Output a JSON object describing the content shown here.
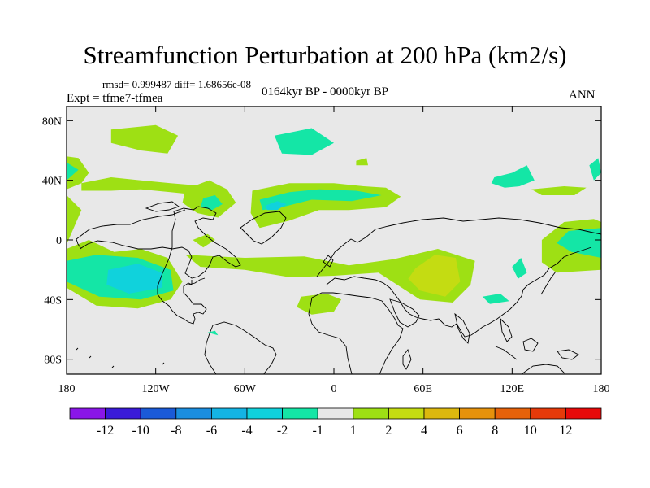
{
  "header": {
    "title": "Streamfunction Perturbation at 200 hPa (km2/s)",
    "stats": "rmsd= 0.999487 diff= 1.68656e-08",
    "experiment": "Expt = tfme7-tfmea",
    "period": "0164kyr BP - 0000kyr BP",
    "season": "ANN"
  },
  "map": {
    "projection": "cylindrical equidistant",
    "lon_range": [
      -180,
      180
    ],
    "lat_range": [
      -90,
      90
    ],
    "lat_ticks": [
      "80N",
      "40N",
      "0",
      "40S",
      "80S"
    ],
    "lon_ticks": [
      "180",
      "120W",
      "60W",
      "0",
      "60E",
      "120E",
      "180"
    ],
    "ocean_color": "#e8e8e8"
  },
  "colorbar": {
    "colors": [
      "#8a16e8",
      "#3a1ad8",
      "#1a5ad8",
      "#1a8ee0",
      "#14b4e4",
      "#10d2dc",
      "#14e6a6",
      "#e8e8e8",
      "#9ee014",
      "#c4dc12",
      "#dcb80e",
      "#e6920c",
      "#e6620a",
      "#e63a0a",
      "#e80a0a"
    ],
    "labels": [
      "-12",
      "-10",
      "-8",
      "-6",
      "-4",
      "-2",
      "-1",
      "1",
      "2",
      "4",
      "6",
      "8",
      "10",
      "12"
    ]
  },
  "chart_data": {
    "type": "heatmap",
    "title": "Streamfunction Perturbation at 200 hPa (km2/s)",
    "levels": [
      -12,
      -10,
      -8,
      -6,
      -4,
      -2,
      -1,
      1,
      2,
      4,
      6,
      8,
      10,
      12
    ],
    "regions": [
      {
        "name": "",
        "level": 2,
        "color": "#9ee014",
        "points": [
          [
            -180,
            -3
          ],
          [
            -170,
            20
          ],
          [
            -180,
            30
          ]
        ]
      },
      {
        "name": "",
        "level": 2,
        "color": "#9ee014",
        "points": [
          [
            -180,
            34
          ],
          [
            -170,
            38
          ],
          [
            -165,
            45
          ],
          [
            -172,
            55
          ],
          [
            -180,
            56
          ]
        ]
      },
      {
        "name": "",
        "level": -1,
        "color": "#14e6a6",
        "points": [
          [
            -180,
            40
          ],
          [
            -172,
            47
          ],
          [
            -180,
            52
          ]
        ]
      },
      {
        "name": "",
        "level": 2,
        "color": "#9ee014",
        "points": [
          [
            -180,
            -6
          ],
          [
            -165,
            0
          ],
          [
            -148,
            -8
          ],
          [
            -130,
            -6
          ],
          [
            -112,
            -12
          ],
          [
            -102,
            -28
          ],
          [
            -110,
            -40
          ],
          [
            -132,
            -46
          ],
          [
            -160,
            -44
          ],
          [
            -180,
            -32
          ]
        ]
      },
      {
        "name": "",
        "level": -1,
        "color": "#14e6a6",
        "points": [
          [
            -180,
            -14
          ],
          [
            -160,
            -10
          ],
          [
            -132,
            -12
          ],
          [
            -110,
            -20
          ],
          [
            -108,
            -34
          ],
          [
            -130,
            -40
          ],
          [
            -158,
            -38
          ],
          [
            -180,
            -28
          ]
        ]
      },
      {
        "name": "",
        "level": -2,
        "color": "#10d2dc",
        "points": [
          [
            -152,
            -20
          ],
          [
            -132,
            -16
          ],
          [
            -116,
            -22
          ],
          [
            -116,
            -32
          ],
          [
            -138,
            -36
          ],
          [
            -153,
            -30
          ]
        ]
      },
      {
        "name": "",
        "level": 2,
        "color": "#9ee014",
        "points": [
          [
            -170,
            38
          ],
          [
            -150,
            42
          ],
          [
            -130,
            40
          ],
          [
            -110,
            38
          ],
          [
            -85,
            36
          ],
          [
            -90,
            30
          ],
          [
            -110,
            32
          ],
          [
            -130,
            34
          ],
          [
            -150,
            33
          ],
          [
            -170,
            33
          ]
        ]
      },
      {
        "name": "",
        "level": 2,
        "color": "#9ee014",
        "points": [
          [
            -150,
            74
          ],
          [
            -120,
            77
          ],
          [
            -105,
            70
          ],
          [
            -112,
            58
          ],
          [
            -130,
            60
          ],
          [
            -150,
            65
          ]
        ]
      },
      {
        "name": "",
        "level": 2,
        "color": "#9ee014",
        "points": [
          [
            -100,
            34
          ],
          [
            -84,
            40
          ],
          [
            -72,
            34
          ],
          [
            -66,
            25
          ],
          [
            -78,
            15
          ],
          [
            -92,
            18
          ],
          [
            -102,
            25
          ]
        ]
      },
      {
        "name": "",
        "level": -1,
        "color": "#14e6a6",
        "points": [
          [
            -88,
            28
          ],
          [
            -80,
            30
          ],
          [
            -75,
            24
          ],
          [
            -82,
            20
          ],
          [
            -90,
            22
          ]
        ]
      },
      {
        "name": "",
        "level": 2,
        "color": "#9ee014",
        "points": [
          [
            -95,
            0
          ],
          [
            -85,
            4
          ],
          [
            -80,
            0
          ],
          [
            -88,
            -5
          ]
        ]
      },
      {
        "name": "",
        "level": 2,
        "color": "#9ee014",
        "points": [
          [
            -55,
            33
          ],
          [
            -30,
            38
          ],
          [
            0,
            38
          ],
          [
            20,
            36
          ],
          [
            35,
            35
          ],
          [
            45,
            29
          ],
          [
            35,
            22
          ],
          [
            10,
            20
          ],
          [
            -10,
            20
          ],
          [
            -30,
            13
          ],
          [
            -50,
            8
          ],
          [
            -56,
            18
          ]
        ]
      },
      {
        "name": "",
        "level": -1,
        "color": "#14e6a6",
        "points": [
          [
            -50,
            27
          ],
          [
            -30,
            32
          ],
          [
            -10,
            34
          ],
          [
            15,
            33
          ],
          [
            32,
            30
          ],
          [
            12,
            26
          ],
          [
            -15,
            27
          ],
          [
            -35,
            22
          ],
          [
            -48,
            20
          ]
        ]
      },
      {
        "name": "",
        "level": -2,
        "color": "#10d2dc",
        "points": [
          [
            -46,
            23
          ],
          [
            -38,
            26
          ],
          [
            -32,
            24
          ],
          [
            -38,
            20
          ],
          [
            -45,
            20
          ]
        ]
      },
      {
        "name": "",
        "level": -1,
        "color": "#14e6a6",
        "points": [
          [
            -40,
            70
          ],
          [
            -15,
            75
          ],
          [
            0,
            65
          ],
          [
            -15,
            57
          ],
          [
            -35,
            58
          ]
        ]
      },
      {
        "name": "",
        "level": 2,
        "color": "#9ee014",
        "points": [
          [
            15,
            53
          ],
          [
            22,
            55
          ],
          [
            23,
            50
          ],
          [
            15,
            50
          ]
        ]
      },
      {
        "name": "",
        "level": -1,
        "color": "#14e6a6",
        "points": [
          [
            108,
            42
          ],
          [
            120,
            45
          ],
          [
            130,
            50
          ],
          [
            135,
            40
          ],
          [
            125,
            36
          ],
          [
            115,
            35
          ],
          [
            106,
            38
          ]
        ]
      },
      {
        "name": "",
        "level": 2,
        "color": "#9ee014",
        "points": [
          [
            133,
            34
          ],
          [
            155,
            36
          ],
          [
            170,
            35
          ],
          [
            162,
            30
          ],
          [
            140,
            30
          ]
        ]
      },
      {
        "name": "",
        "level": -1,
        "color": "#14e6a6",
        "points": [
          [
            172,
            50
          ],
          [
            178,
            55
          ],
          [
            180,
            45
          ],
          [
            175,
            40
          ]
        ]
      },
      {
        "name": "",
        "level": 2,
        "color": "#9ee014",
        "points": [
          [
            180,
            -20
          ],
          [
            150,
            -22
          ],
          [
            140,
            -15
          ],
          [
            140,
            0
          ],
          [
            155,
            12
          ],
          [
            175,
            14
          ],
          [
            180,
            12
          ]
        ]
      },
      {
        "name": "",
        "level": -1,
        "color": "#14e6a6",
        "points": [
          [
            180,
            -12
          ],
          [
            160,
            -8
          ],
          [
            150,
            -2
          ],
          [
            158,
            6
          ],
          [
            180,
            8
          ]
        ]
      },
      {
        "name": "",
        "level": -1,
        "color": "#14e6a6",
        "points": [
          [
            120,
            -18
          ],
          [
            126,
            -12
          ],
          [
            130,
            -22
          ],
          [
            124,
            -26
          ]
        ]
      },
      {
        "name": "",
        "level": 2,
        "color": "#9ee014",
        "points": [
          [
            -100,
            -10
          ],
          [
            -60,
            -12
          ],
          [
            -20,
            -11
          ],
          [
            10,
            -17
          ],
          [
            40,
            -13
          ],
          [
            70,
            -6
          ],
          [
            95,
            -14
          ],
          [
            92,
            -30
          ],
          [
            80,
            -42
          ],
          [
            58,
            -40
          ],
          [
            30,
            -22
          ],
          [
            0,
            -24
          ],
          [
            -30,
            -25
          ],
          [
            -60,
            -20
          ],
          [
            -90,
            -18
          ]
        ]
      },
      {
        "name": "",
        "level": 4,
        "color": "#c4dc12",
        "points": [
          [
            55,
            -19
          ],
          [
            68,
            -10
          ],
          [
            82,
            -12
          ],
          [
            85,
            -28
          ],
          [
            75,
            -38
          ],
          [
            58,
            -34
          ],
          [
            50,
            -26
          ]
        ]
      },
      {
        "name": "",
        "level": 2,
        "color": "#9ee014",
        "points": [
          [
            -22,
            -38
          ],
          [
            -5,
            -36
          ],
          [
            5,
            -40
          ],
          [
            0,
            -48
          ],
          [
            -15,
            -50
          ],
          [
            -25,
            -45
          ]
        ]
      },
      {
        "name": "",
        "level": -1,
        "color": "#14e6a6",
        "points": [
          [
            100,
            -38
          ],
          [
            112,
            -36
          ],
          [
            118,
            -41
          ],
          [
            105,
            -43
          ]
        ]
      },
      {
        "name": "",
        "level": -1,
        "color": "#14e6a6",
        "points": [
          [
            -85,
            -62
          ],
          [
            -80,
            -61
          ],
          [
            -78,
            -64
          ]
        ]
      }
    ]
  }
}
